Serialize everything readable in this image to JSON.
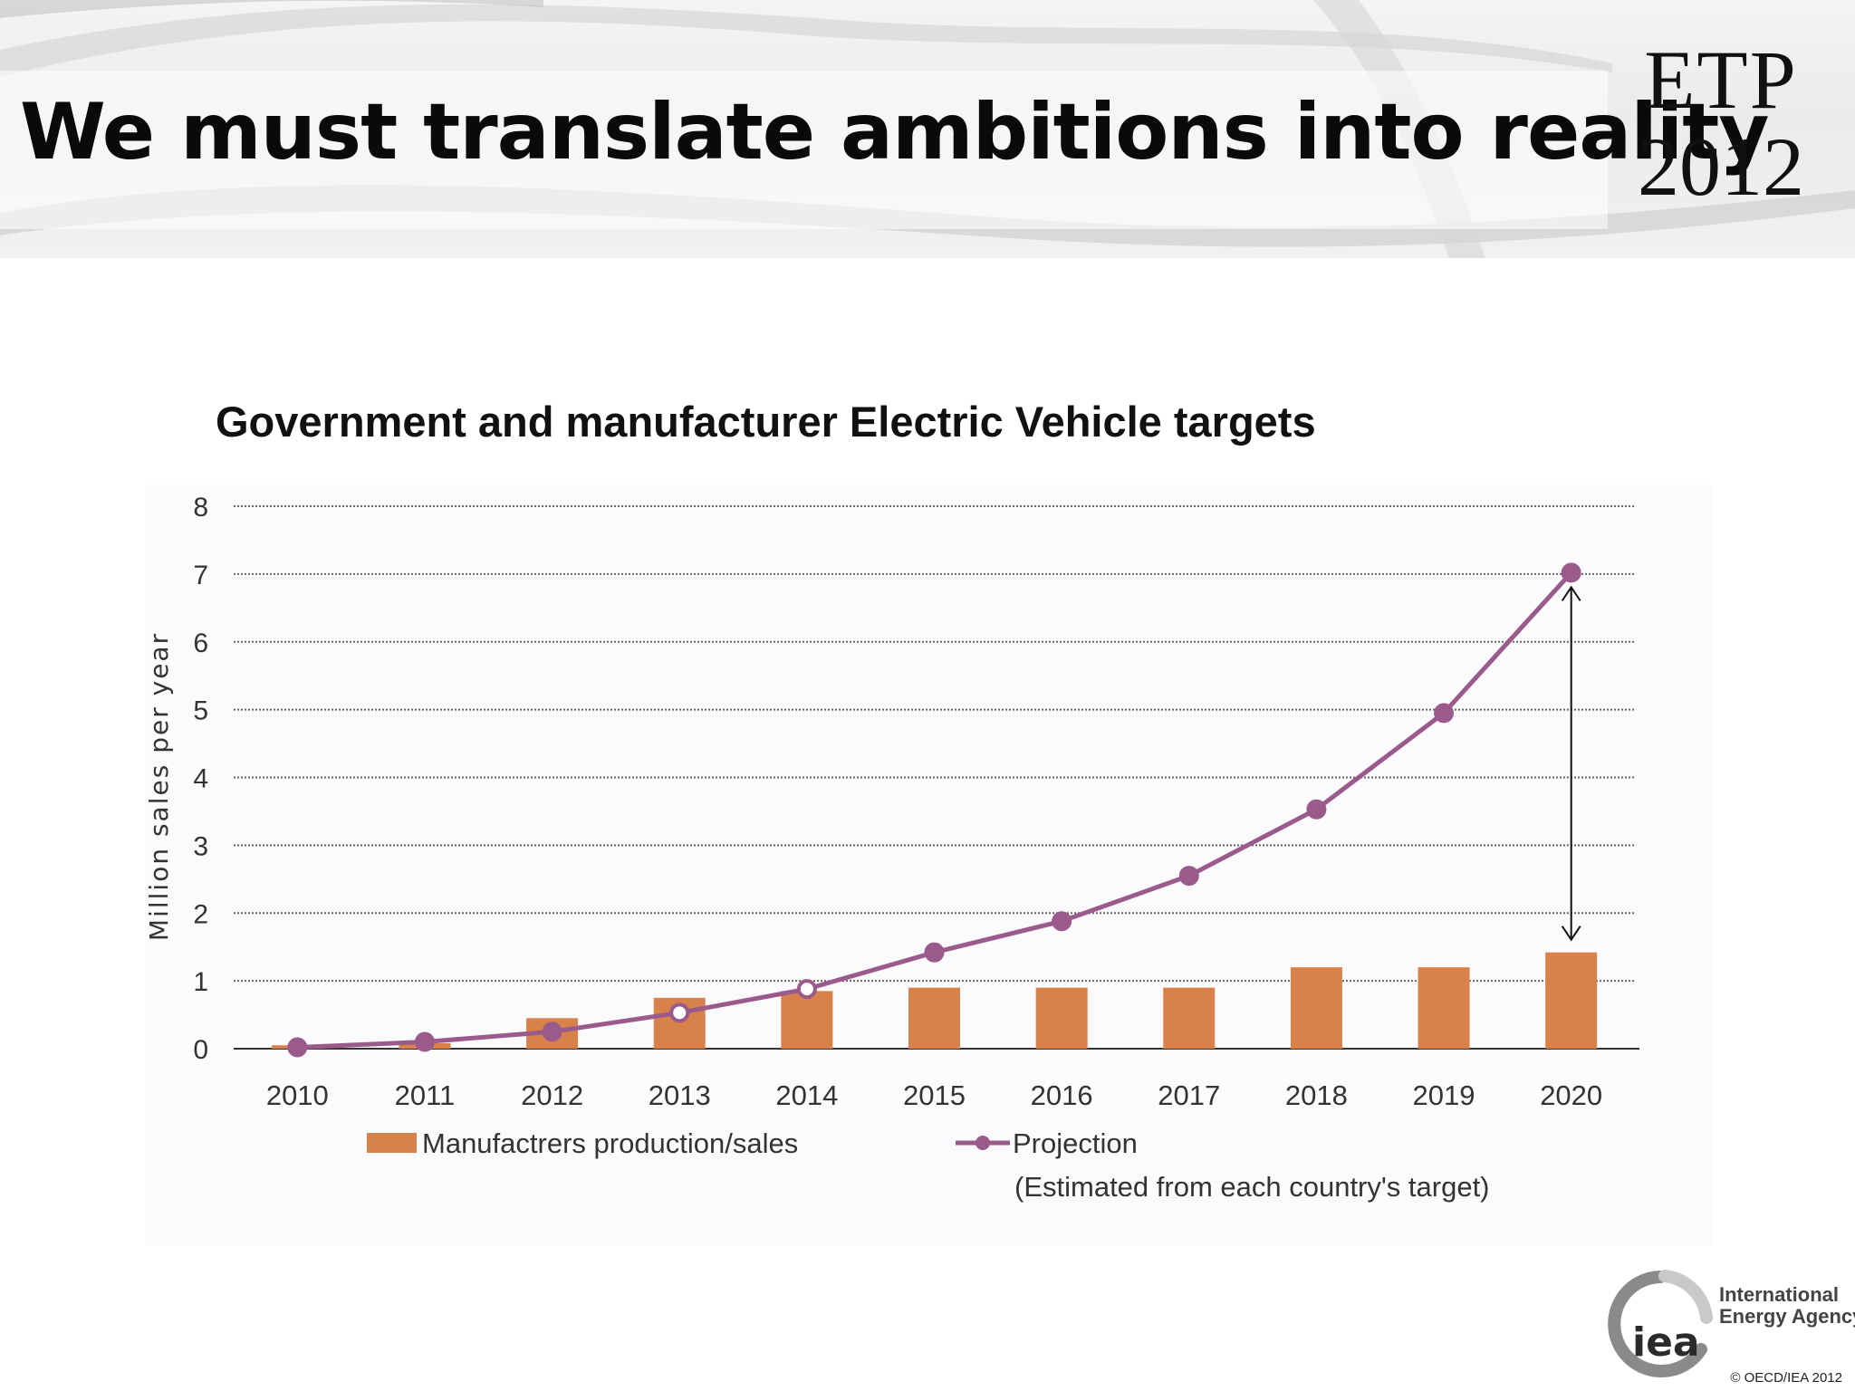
{
  "slide": {
    "title": "We must translate ambitions into reality",
    "etp_name": "ETP",
    "etp_year": "2012",
    "chart_heading": "Government and manufacturer Electric Vehicle targets",
    "logo_text_line1": "International",
    "logo_text_line2": "Energy Agency",
    "logo_mark": "iea",
    "copyright": "© OECD/IEA 2012"
  },
  "chart_data": {
    "type": "bar+line",
    "categories": [
      "2010",
      "2011",
      "2012",
      "2013",
      "2014",
      "2015",
      "2016",
      "2017",
      "2018",
      "2019",
      "2020"
    ],
    "ylabel": "Million sales per year",
    "ylim": [
      0,
      8
    ],
    "yticks": [
      0,
      1,
      2,
      3,
      4,
      5,
      6,
      7,
      8
    ],
    "grid": "horizontal dotted",
    "series": [
      {
        "name": "Manufactrers production/sales",
        "kind": "bar",
        "color": "#d9814a",
        "values": [
          0.05,
          0.08,
          0.45,
          0.75,
          0.85,
          0.9,
          0.9,
          0.9,
          1.2,
          1.2,
          1.42
        ]
      },
      {
        "name": "Projection",
        "name_note": "(Estimated from each country's target)",
        "kind": "line",
        "color": "#9b5a8c",
        "values": [
          0.02,
          0.1,
          0.25,
          0.53,
          0.88,
          1.42,
          1.88,
          2.55,
          3.53,
          4.95,
          7.02
        ]
      }
    ],
    "annotation": "double-headed arrow at 2020 between bar top and projection",
    "legend_position": "bottom"
  }
}
